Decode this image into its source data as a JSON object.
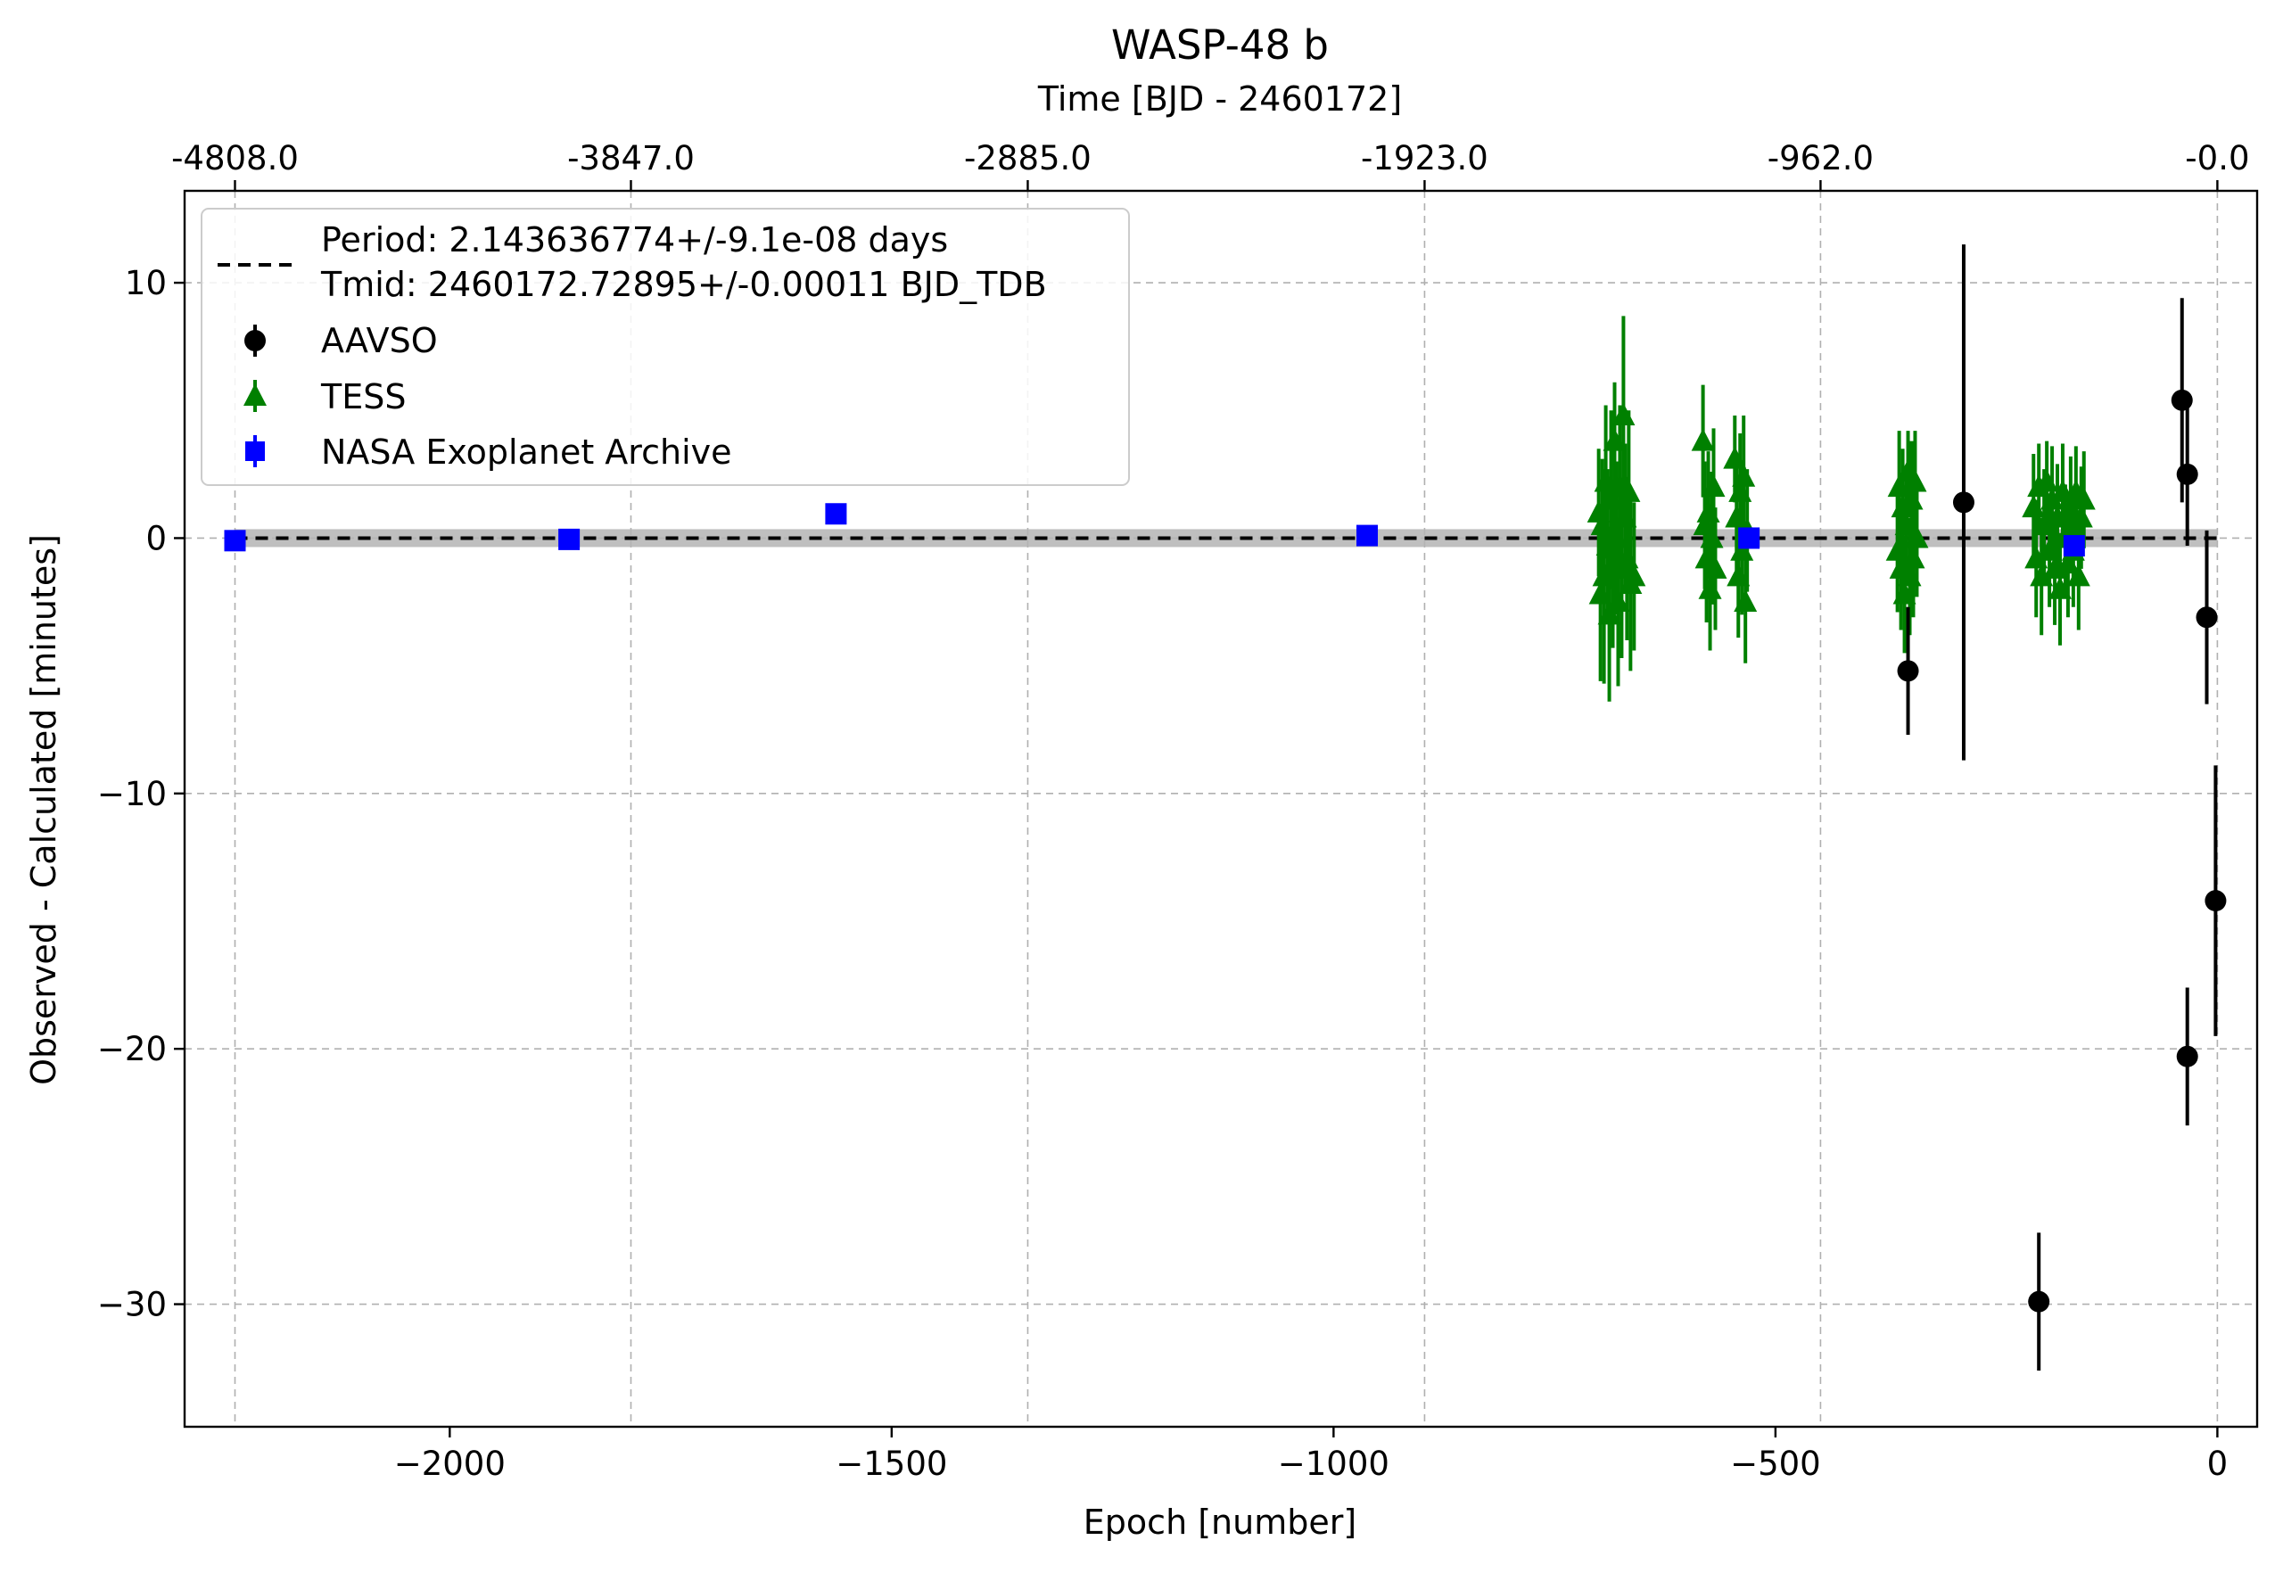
{
  "chart_data": {
    "type": "scatter",
    "title": "WASP-48 b",
    "xlabel": "Epoch [number]",
    "ylabel": "Observed - Calculated [minutes]",
    "top_xlabel": "Time [BJD - 2460172]",
    "xlim": [
      -2300,
      45
    ],
    "ylim": [
      -34.8,
      13.6
    ],
    "grid": true,
    "legend_position": "upper-left",
    "x_ticks": [
      -2000,
      -1500,
      -1000,
      -500,
      0
    ],
    "x_tick_labels": [
      "−2000",
      "−1500",
      "−1000",
      "−500",
      "0"
    ],
    "y_ticks": [
      10,
      0,
      -10,
      -20,
      -30
    ],
    "y_tick_labels": [
      "10",
      "0",
      "−10",
      "−20",
      "−30"
    ],
    "top_x_ticks": [
      -2243,
      -1795,
      -1346,
      -897,
      -449,
      0
    ],
    "top_x_tick_labels": [
      "-4808.0",
      "-3847.0",
      "-2885.0",
      "-1923.0",
      "-962.0",
      "-0.0"
    ],
    "fit": {
      "label_line1": "Period: 2.143636774+/-9.1e-08 days",
      "label_line2": "Tmid: 2460172.72895+/-0.00011 BJD_TDB",
      "x_range": [
        -2243,
        0
      ],
      "y": 0,
      "band_halfwidth": 0.35,
      "color": "#000000",
      "band_color": "#b4b4b4"
    },
    "series": [
      {
        "name": "AAVSO",
        "marker": "circle",
        "color": "#000000",
        "points": [
          {
            "x": -40,
            "y": 5.4,
            "err": 4.0
          },
          {
            "x": -34,
            "y": 2.5,
            "err": 2.8
          },
          {
            "x": -12,
            "y": -3.1,
            "err": 3.4
          },
          {
            "x": -2,
            "y": -14.2,
            "err": 5.3
          },
          {
            "x": -34,
            "y": -20.3,
            "err": 2.7
          },
          {
            "x": -202,
            "y": -29.9,
            "err": 2.7
          },
          {
            "x": -287,
            "y": 1.4,
            "err": 10.1
          },
          {
            "x": -350,
            "y": -5.2,
            "err": 2.5
          }
        ]
      },
      {
        "name": "TESS",
        "marker": "triangle",
        "color": "#008000",
        "points": [
          {
            "x": -700,
            "y": 1.0,
            "err": 2.5
          },
          {
            "x": -698,
            "y": -2.2,
            "err": 3.4
          },
          {
            "x": -696,
            "y": 0.5,
            "err": 2.6
          },
          {
            "x": -694,
            "y": -1.5,
            "err": 4.2
          },
          {
            "x": -692,
            "y": 2.2,
            "err": 3.0
          },
          {
            "x": -690,
            "y": -0.3,
            "err": 3.0
          },
          {
            "x": -688,
            "y": -3.0,
            "err": 3.4
          },
          {
            "x": -686,
            "y": 1.5,
            "err": 3.5
          },
          {
            "x": -684,
            "y": -1.0,
            "err": 3.3
          },
          {
            "x": -682,
            "y": 3.8,
            "err": 2.3
          },
          {
            "x": -680,
            "y": 0.0,
            "err": 3.0
          },
          {
            "x": -678,
            "y": -2.5,
            "err": 3.3
          },
          {
            "x": -676,
            "y": 2.0,
            "err": 3.2
          },
          {
            "x": -674,
            "y": -1.2,
            "err": 3.5
          },
          {
            "x": -672,
            "y": 4.8,
            "err": 3.9
          },
          {
            "x": -670,
            "y": 0.8,
            "err": 2.9
          },
          {
            "x": -668,
            "y": -0.8,
            "err": 3.2
          },
          {
            "x": -666,
            "y": 1.8,
            "err": 3.2
          },
          {
            "x": -664,
            "y": -1.8,
            "err": 3.4
          },
          {
            "x": -660,
            "y": -1.5,
            "err": 2.9
          },
          {
            "x": -582,
            "y": 3.8,
            "err": 2.2
          },
          {
            "x": -580,
            "y": 0.5,
            "err": 2.5
          },
          {
            "x": -578,
            "y": -0.8,
            "err": 2.5
          },
          {
            "x": -576,
            "y": 1.0,
            "err": 2.4
          },
          {
            "x": -574,
            "y": -2.0,
            "err": 2.4
          },
          {
            "x": -572,
            "y": 0.0,
            "err": 2.6
          },
          {
            "x": -570,
            "y": 2.0,
            "err": 2.3
          },
          {
            "x": -568,
            "y": -1.2,
            "err": 2.4
          },
          {
            "x": -546,
            "y": 3.1,
            "err": 1.7
          },
          {
            "x": -544,
            "y": 0.8,
            "err": 2.4
          },
          {
            "x": -542,
            "y": -1.5,
            "err": 2.4
          },
          {
            "x": -540,
            "y": 1.8,
            "err": 2.3
          },
          {
            "x": -538,
            "y": -0.5,
            "err": 2.5
          },
          {
            "x": -536,
            "y": 2.4,
            "err": 2.4
          },
          {
            "x": -534,
            "y": -2.5,
            "err": 2.4
          },
          {
            "x": -532,
            "y": 0.3,
            "err": 2.4
          },
          {
            "x": -362,
            "y": -0.5,
            "err": 2.4
          },
          {
            "x": -360,
            "y": 2.0,
            "err": 2.2
          },
          {
            "x": -358,
            "y": -1.2,
            "err": 2.4
          },
          {
            "x": -356,
            "y": 1.2,
            "err": 2.3
          },
          {
            "x": -354,
            "y": -2.2,
            "err": 2.3
          },
          {
            "x": -352,
            "y": 0.5,
            "err": 2.3
          },
          {
            "x": -350,
            "y": 2.6,
            "err": 1.6
          },
          {
            "x": -348,
            "y": -1.5,
            "err": 2.3
          },
          {
            "x": -346,
            "y": 1.5,
            "err": 2.3
          },
          {
            "x": -344,
            "y": -0.8,
            "err": 2.3
          },
          {
            "x": -342,
            "y": 2.2,
            "err": 2.0
          },
          {
            "x": -340,
            "y": 0.0,
            "err": 2.3
          },
          {
            "x": -208,
            "y": 1.2,
            "err": 2.1
          },
          {
            "x": -205,
            "y": -0.8,
            "err": 2.3
          },
          {
            "x": -202,
            "y": 2.0,
            "err": 1.7
          },
          {
            "x": -199,
            "y": -1.5,
            "err": 2.3
          },
          {
            "x": -196,
            "y": 0.5,
            "err": 2.2
          },
          {
            "x": -193,
            "y": 2.2,
            "err": 1.6
          },
          {
            "x": -190,
            "y": -0.5,
            "err": 2.2
          },
          {
            "x": -187,
            "y": 1.5,
            "err": 2.1
          },
          {
            "x": -184,
            "y": -1.2,
            "err": 2.2
          },
          {
            "x": -181,
            "y": 0.8,
            "err": 2.1
          },
          {
            "x": -178,
            "y": -2.0,
            "err": 2.2
          },
          {
            "x": -175,
            "y": 1.8,
            "err": 1.9
          },
          {
            "x": -172,
            "y": 0.0,
            "err": 2.1
          },
          {
            "x": -169,
            "y": -1.0,
            "err": 2.1
          },
          {
            "x": -166,
            "y": 1.2,
            "err": 2.0
          },
          {
            "x": -163,
            "y": -0.5,
            "err": 2.2
          },
          {
            "x": -160,
            "y": 1.8,
            "err": 1.8
          },
          {
            "x": -157,
            "y": -1.5,
            "err": 2.1
          },
          {
            "x": -154,
            "y": 0.8,
            "err": 2.0
          },
          {
            "x": -151,
            "y": 1.5,
            "err": 1.9
          }
        ]
      },
      {
        "name": "NASA Exoplanet Archive",
        "marker": "square",
        "color": "#0000ff",
        "points": [
          {
            "x": -2243,
            "y": -0.1,
            "err": 0.3
          },
          {
            "x": -1865,
            "y": -0.05,
            "err": 0.25
          },
          {
            "x": -1563,
            "y": 0.95,
            "err": 0.3
          },
          {
            "x": -962,
            "y": 0.1,
            "err": 0.25
          },
          {
            "x": -530,
            "y": 0.0,
            "err": 0.2
          },
          {
            "x": -162,
            "y": -0.3,
            "err": 0.2
          }
        ]
      }
    ]
  }
}
